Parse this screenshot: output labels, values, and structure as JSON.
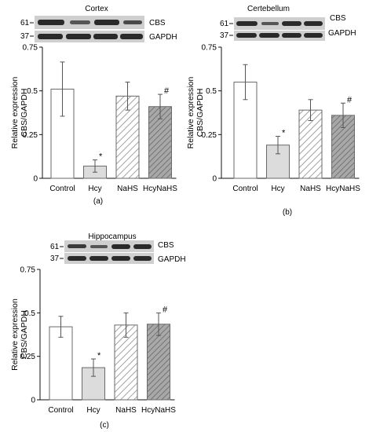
{
  "panels": [
    {
      "id": "a",
      "blot_title": "Cortex",
      "markers": [
        "61",
        "37"
      ],
      "blot_labels": [
        "CBS",
        "GAPDH"
      ],
      "panel_label": "(a)",
      "chart_data": {
        "type": "bar",
        "categories": [
          "Control",
          "Hcy",
          "NaHS",
          "HcyNaHS"
        ],
        "values": [
          0.51,
          0.07,
          0.47,
          0.41
        ],
        "errors": [
          0.155,
          0.035,
          0.08,
          0.07
        ],
        "annotations": [
          "",
          "*",
          "",
          "#"
        ],
        "fills": [
          "white",
          "light-gray",
          "hatch",
          "gray-hatch"
        ],
        "ylabel": "Relative expression CBS/GAPDH",
        "ylabel_lines": [
          "Relative expression",
          "CBS/GAPDH"
        ],
        "ylim": [
          0,
          0.75
        ],
        "yticks": [
          0,
          0.25,
          0.5,
          0.75
        ],
        "ytick_labels": [
          "0",
          "0.25",
          "0.5",
          "0.75"
        ]
      }
    },
    {
      "id": "b",
      "blot_title": "Certebellum",
      "markers": [
        "61",
        "37"
      ],
      "blot_labels": [
        "CBS",
        "GAPDH"
      ],
      "panel_label": "(b)",
      "chart_data": {
        "type": "bar",
        "categories": [
          "Control",
          "Hcy",
          "NaHS",
          "HcyNaHS"
        ],
        "values": [
          0.55,
          0.19,
          0.39,
          0.36
        ],
        "errors": [
          0.1,
          0.05,
          0.06,
          0.07
        ],
        "annotations": [
          "",
          "*",
          "",
          "#"
        ],
        "fills": [
          "white",
          "light-gray",
          "hatch",
          "gray-hatch"
        ],
        "ylabel": "Relative expression CBS/GAPDH",
        "ylabel_lines": [
          "Relative expression",
          "CBS/GAPDH"
        ],
        "ylim": [
          0,
          0.75
        ],
        "yticks": [
          0,
          0.25,
          0.5,
          0.75
        ],
        "ytick_labels": [
          "0",
          "0.25",
          "0.5",
          "0.75"
        ]
      }
    },
    {
      "id": "c",
      "blot_title": "Hippocampus",
      "markers": [
        "61",
        "37"
      ],
      "blot_labels": [
        "CBS",
        "GAPDH"
      ],
      "panel_label": "(c)",
      "chart_data": {
        "type": "bar",
        "categories": [
          "Control",
          "Hcy",
          "NaHS",
          "HcyNaHS"
        ],
        "values": [
          0.42,
          0.185,
          0.43,
          0.435
        ],
        "errors": [
          0.06,
          0.05,
          0.07,
          0.065
        ],
        "annotations": [
          "",
          "*",
          "",
          "#"
        ],
        "fills": [
          "white",
          "light-gray",
          "hatch",
          "gray-hatch"
        ],
        "ylabel": "Relative expression CBS/GAPDH",
        "ylabel_lines": [
          "Relative expression",
          "CBS/GAPDH"
        ],
        "ylim": [
          0,
          0.75
        ],
        "yticks": [
          0,
          0.25,
          0.5,
          0.75
        ],
        "ytick_labels": [
          "0",
          "0.25",
          "0.5",
          "0.75"
        ]
      }
    }
  ],
  "colors": {
    "axis": "#111111",
    "bar_outline": "#6a6a6a",
    "light_gray_fill": "#dcdcdc",
    "gray_hatch_fill": "#9a9a9a",
    "hatch_line": "#8a8a8a",
    "blot_background": "#cfcfcf",
    "blot_band": "#2a2a2a"
  }
}
